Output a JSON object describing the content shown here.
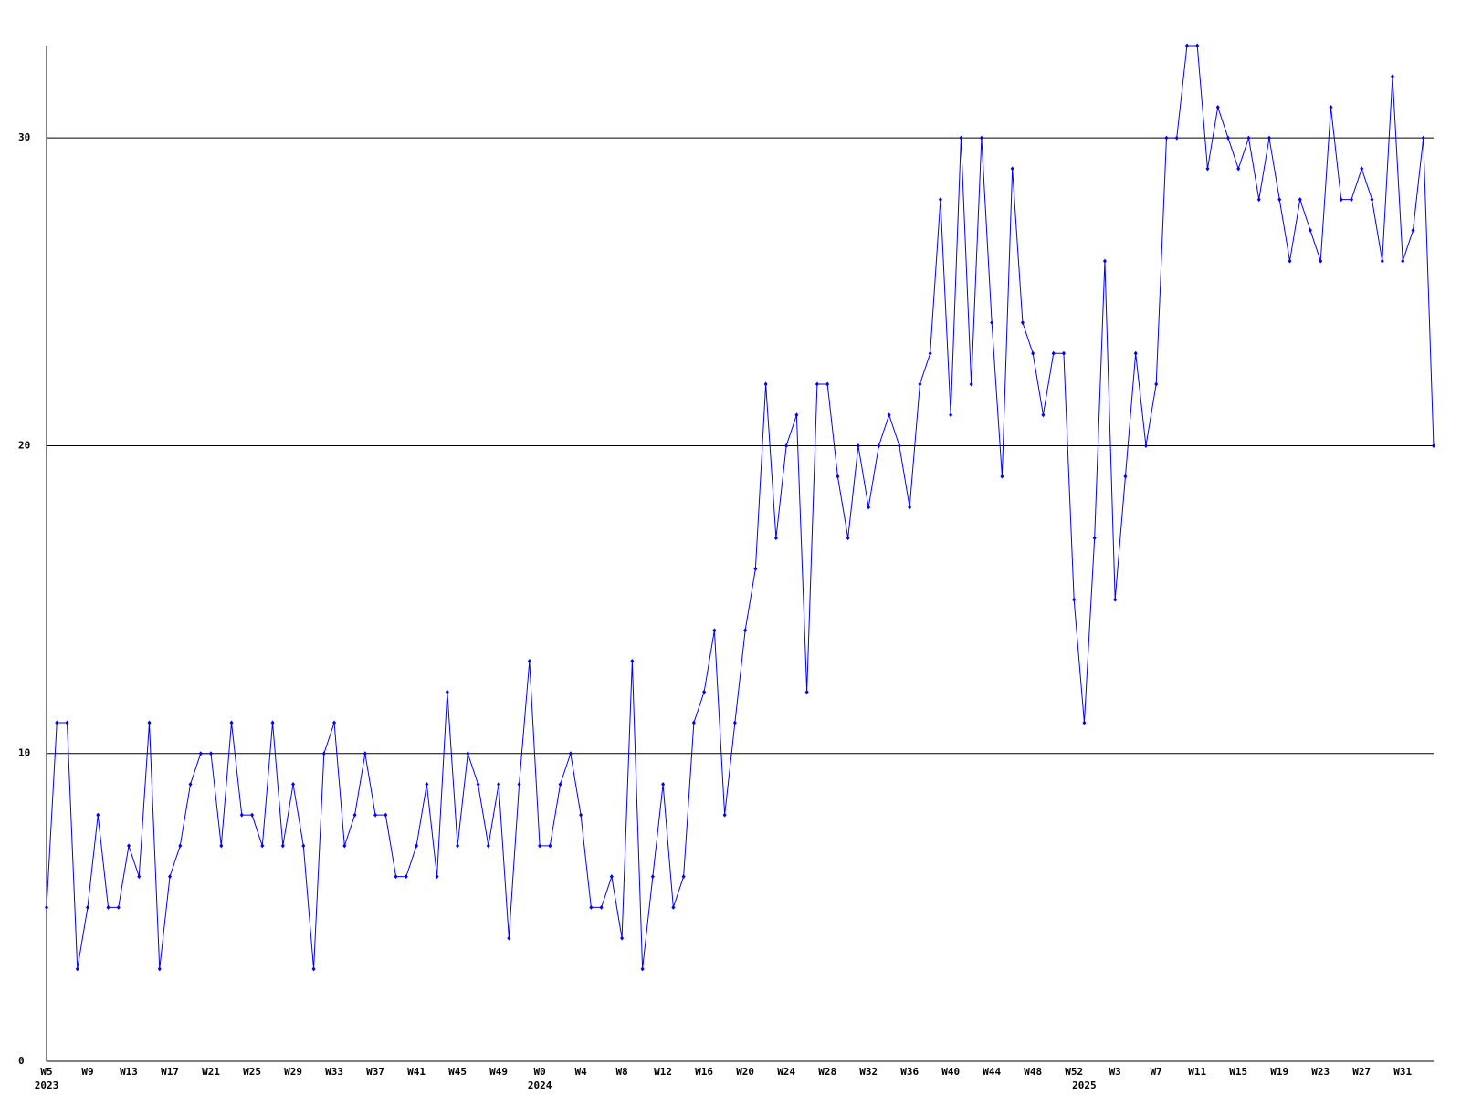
{
  "chart_data": {
    "type": "line",
    "categories": [
      "W5",
      null,
      null,
      null,
      "W9",
      null,
      null,
      null,
      "W13",
      null,
      null,
      null,
      "W17",
      null,
      null,
      null,
      "W21",
      null,
      null,
      null,
      "W25",
      null,
      null,
      null,
      "W29",
      null,
      null,
      null,
      "W33",
      null,
      null,
      null,
      "W37",
      null,
      null,
      null,
      "W41",
      null,
      null,
      null,
      "W45",
      null,
      null,
      null,
      "W49",
      null,
      null,
      null,
      "W0",
      null,
      null,
      null,
      "W4",
      null,
      null,
      null,
      "W8",
      null,
      null,
      null,
      "W12",
      null,
      null,
      null,
      "W16",
      null,
      null,
      null,
      "W20",
      null,
      null,
      null,
      "W24",
      null,
      null,
      null,
      "W28",
      null,
      null,
      null,
      "W32",
      null,
      null,
      null,
      "W36",
      null,
      null,
      null,
      "W40",
      null,
      null,
      null,
      "W44",
      null,
      null,
      null,
      "W48",
      null,
      null,
      null,
      "W52",
      null,
      null,
      null,
      "W3",
      null,
      null,
      null,
      "W7",
      null,
      null,
      null,
      "W11",
      null,
      null,
      null,
      "W15",
      null,
      null,
      null,
      "W19",
      null,
      null,
      null,
      "W23",
      null,
      null,
      null,
      "W27",
      null,
      null,
      null,
      "W31",
      null,
      null,
      null
    ],
    "year_labels": [
      "2023",
      null,
      null,
      null,
      null,
      null,
      null,
      null,
      null,
      null,
      null,
      null,
      null,
      null,
      null,
      null,
      null,
      null,
      null,
      null,
      null,
      null,
      null,
      null,
      null,
      null,
      null,
      null,
      null,
      null,
      null,
      null,
      null,
      null,
      null,
      null,
      null,
      null,
      null,
      null,
      null,
      null,
      null,
      null,
      null,
      null,
      null,
      null,
      "2024",
      null,
      null,
      null,
      null,
      null,
      null,
      null,
      null,
      null,
      null,
      null,
      null,
      null,
      null,
      null,
      null,
      null,
      null,
      null,
      null,
      null,
      null,
      null,
      null,
      null,
      null,
      null,
      null,
      null,
      null,
      null,
      null,
      null,
      null,
      null,
      null,
      null,
      null,
      null,
      null,
      null,
      null,
      null,
      null,
      null,
      null,
      null,
      null,
      null,
      null,
      null,
      null,
      "2025",
      null,
      null,
      null,
      null,
      null,
      null,
      null,
      null,
      null,
      null,
      null,
      null,
      null,
      null,
      null,
      null,
      null,
      null,
      null,
      null,
      null,
      null,
      null,
      null,
      null,
      null,
      null,
      null,
      null,
      null,
      null,
      null,
      null,
      null
    ],
    "series": [
      {
        "color": "#0000ff",
        "values": [
          5,
          11,
          11,
          3,
          5,
          8,
          5,
          5,
          7,
          6,
          11,
          3,
          6,
          7,
          9,
          10,
          10,
          7,
          11,
          8,
          8,
          7,
          11,
          7,
          9,
          7,
          3,
          10,
          11,
          7,
          8,
          10,
          8,
          8,
          6,
          6,
          7,
          9,
          6,
          12,
          7,
          10,
          9,
          7,
          9,
          4,
          9,
          13,
          7,
          7,
          9,
          10,
          8,
          5,
          5,
          6,
          4,
          13,
          3,
          6,
          9,
          5,
          6,
          11,
          12,
          14,
          8,
          11,
          14,
          16,
          22,
          17,
          20,
          21,
          12,
          22,
          22,
          19,
          17,
          20,
          18,
          20,
          21,
          20,
          18,
          22,
          23,
          28,
          21,
          30,
          22,
          30,
          24,
          19,
          29,
          24,
          23,
          21,
          23,
          23,
          15,
          11,
          17,
          26,
          15,
          19,
          23,
          20,
          22,
          30,
          30,
          33,
          33,
          29,
          31,
          30,
          29,
          30,
          28,
          30,
          28,
          26,
          28,
          27,
          26,
          31,
          28,
          28,
          29,
          28,
          26,
          32,
          26,
          27,
          30,
          20
        ]
      }
    ],
    "ylim": [
      0,
      33
    ],
    "yticks": [
      0,
      10,
      20,
      30
    ],
    "grid": true
  }
}
